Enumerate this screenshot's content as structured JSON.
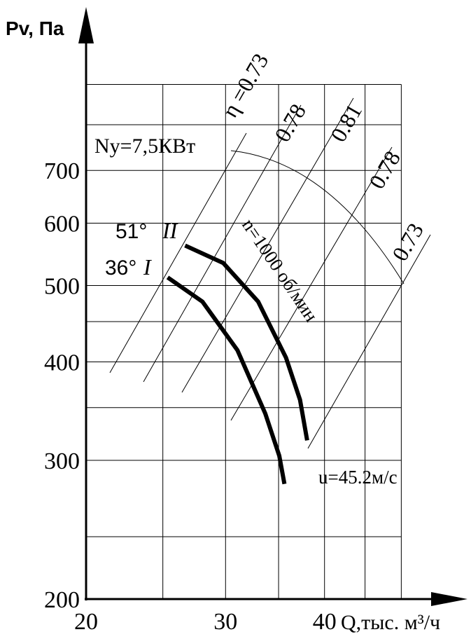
{
  "chart_data": {
    "type": "line",
    "y_label": "Pv, Па",
    "x_label": "Q,тыс. м³/ч",
    "log_x": true,
    "log_y": true,
    "xlim": [
      20,
      60
    ],
    "ylim": [
      200,
      1000
    ],
    "xticks": [
      20,
      30,
      40
    ],
    "yticks": [
      200,
      300,
      400,
      500,
      600,
      700
    ],
    "xgrid": [
      25,
      35,
      45,
      50
    ],
    "ygrid": [
      240,
      350,
      450,
      800,
      900
    ],
    "grid": true,
    "series": [
      {
        "name": "I",
        "angle": "36°",
        "color": "#000000",
        "x": [
          25.35,
          28.05,
          31.05,
          33.67,
          35.07,
          35.6
        ],
        "values": [
          512,
          477,
          414,
          344,
          304,
          280
        ]
      },
      {
        "name": "II",
        "angle": "51°",
        "color": "#000000",
        "x": [
          26.67,
          29.8,
          32.98,
          35.76,
          37.25,
          38.03
        ],
        "values": [
          562,
          534,
          477,
          405,
          358,
          318
        ]
      }
    ],
    "efficiency_labels": [
      "η =0.73",
      "0.78",
      "0.81",
      "0.78",
      "0.73"
    ],
    "annotations": {
      "power": "Ny=7,5КВт",
      "speed": "n=1000 об/мин",
      "velocity": "u=45.2м/с"
    }
  }
}
